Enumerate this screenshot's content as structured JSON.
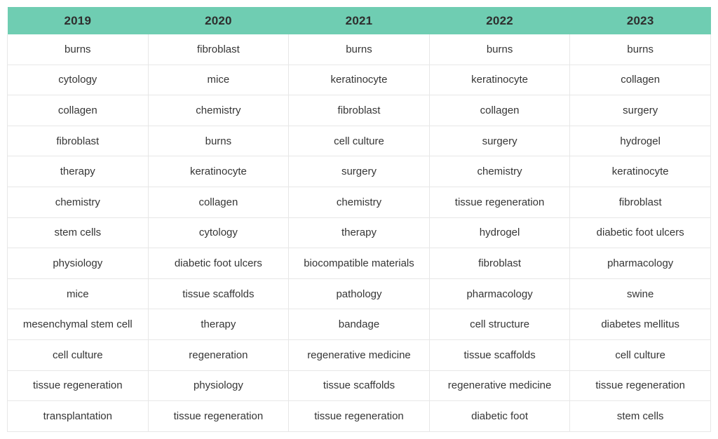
{
  "chart_data": {
    "type": "table",
    "title": "",
    "columns": [
      "2019",
      "2020",
      "2021",
      "2022",
      "2023"
    ],
    "rows": [
      [
        "burns",
        "fibroblast",
        "burns",
        "burns",
        "burns"
      ],
      [
        "cytology",
        "mice",
        "keratinocyte",
        "keratinocyte",
        "collagen"
      ],
      [
        "collagen",
        "chemistry",
        "fibroblast",
        "collagen",
        "surgery"
      ],
      [
        "fibroblast",
        "burns",
        "cell culture",
        "surgery",
        "hydrogel"
      ],
      [
        "therapy",
        "keratinocyte",
        "surgery",
        "chemistry",
        "keratinocyte"
      ],
      [
        "chemistry",
        "collagen",
        "chemistry",
        "tissue regeneration",
        "fibroblast"
      ],
      [
        "stem cells",
        "cytology",
        "therapy",
        "hydrogel",
        "diabetic foot ulcers"
      ],
      [
        "physiology",
        "diabetic foot ulcers",
        "biocompatible materials",
        "fibroblast",
        "pharmacology"
      ],
      [
        "mice",
        "tissue scaffolds",
        "pathology",
        "pharmacology",
        "swine"
      ],
      [
        "mesenchymal stem cell",
        "therapy",
        "bandage",
        "cell structure",
        "diabetes mellitus"
      ],
      [
        "cell culture",
        "regeneration",
        "regenerative medicine",
        "tissue scaffolds",
        "cell culture"
      ],
      [
        "tissue regeneration",
        "physiology",
        "tissue scaffolds",
        "regenerative medicine",
        "tissue regeneration"
      ],
      [
        "transplantation",
        "tissue regeneration",
        "tissue regeneration",
        "diabetic foot",
        "stem cells"
      ]
    ],
    "layout": {
      "legend": "none",
      "grid": "cell-borders",
      "header_position": "top"
    }
  },
  "colors": {
    "header_bg": "#6FCDB2",
    "header_text": "#2E2E2E",
    "body_text": "#363636",
    "cell_border": "#E7E7E7",
    "background": "#FFFFFF"
  }
}
